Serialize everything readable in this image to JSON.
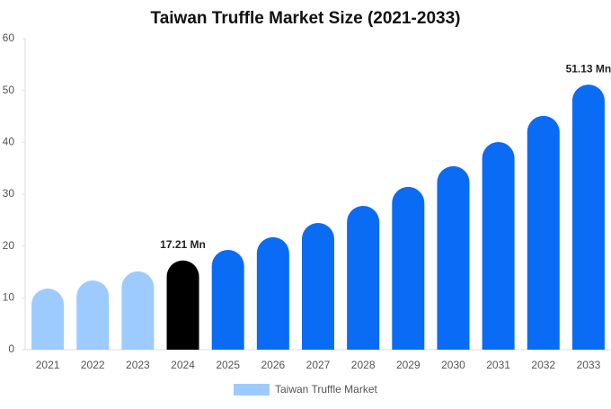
{
  "chart_data": {
    "type": "bar",
    "title": "Taiwan Truffle Market Size (2021-2033)",
    "categories": [
      "2021",
      "2022",
      "2023",
      "2024",
      "2025",
      "2026",
      "2027",
      "2028",
      "2029",
      "2030",
      "2031",
      "2032",
      "2033"
    ],
    "series": [
      {
        "name": "Taiwan Truffle Market",
        "color": "#9ecbff",
        "values": [
          11.8,
          13.35,
          15.1,
          17.21,
          19.25,
          21.7,
          24.45,
          27.75,
          31.4,
          35.4,
          40.05,
          45.1,
          51.13
        ],
        "value_labels": [
          null,
          null,
          null,
          "17.21 Mn",
          null,
          null,
          null,
          null,
          null,
          null,
          null,
          null,
          "51.13 Mn"
        ],
        "colors": [
          "#9ecbff",
          "#9ecbff",
          "#9ecbff",
          "#000000",
          "#0a6cf5",
          "#0a6cf5",
          "#0a6cf5",
          "#0a6cf5",
          "#0a6cf5",
          "#0a6cf5",
          "#0a6cf5",
          "#0a6cf5",
          "#0a6cf5"
        ]
      }
    ],
    "ylim": [
      0,
      60
    ],
    "yticks": [
      0,
      10,
      20,
      30,
      40,
      50,
      60
    ],
    "grid": false
  }
}
